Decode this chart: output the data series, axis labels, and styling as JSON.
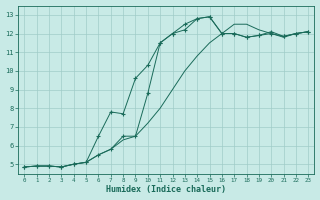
{
  "xlabel": "Humidex (Indice chaleur)",
  "bg_color": "#c8eae6",
  "grid_color": "#a0ccc8",
  "line_color": "#1a6b5a",
  "xlim": [
    -0.5,
    23.5
  ],
  "ylim": [
    4.5,
    13.5
  ],
  "xticks": [
    0,
    1,
    2,
    3,
    4,
    5,
    6,
    7,
    8,
    9,
    10,
    11,
    12,
    13,
    14,
    15,
    16,
    17,
    18,
    19,
    20,
    21,
    22,
    23
  ],
  "yticks": [
    5,
    6,
    7,
    8,
    9,
    10,
    11,
    12,
    13
  ],
  "line1_x": [
    0,
    1,
    2,
    3,
    4,
    5,
    6,
    7,
    8,
    9,
    10,
    11,
    12,
    13,
    14,
    15,
    16,
    17,
    18,
    19,
    20,
    21,
    22,
    23
  ],
  "line1_y": [
    4.85,
    4.9,
    4.9,
    4.85,
    5.0,
    5.1,
    5.5,
    5.8,
    6.3,
    6.5,
    7.2,
    8.0,
    9.0,
    10.0,
    10.8,
    11.5,
    12.0,
    12.5,
    12.5,
    12.2,
    12.0,
    11.8,
    12.0,
    12.1
  ],
  "line2_x": [
    0,
    1,
    2,
    3,
    4,
    5,
    6,
    7,
    8,
    9,
    10,
    11,
    12,
    13,
    14,
    15,
    16,
    17,
    18,
    19,
    20,
    21,
    22,
    23
  ],
  "line2_y": [
    4.85,
    4.9,
    4.9,
    4.85,
    5.0,
    5.1,
    6.5,
    7.8,
    7.7,
    9.6,
    10.3,
    11.5,
    12.0,
    12.2,
    12.8,
    12.9,
    12.0,
    12.0,
    11.8,
    11.9,
    12.1,
    11.85,
    12.0,
    12.1
  ],
  "line3_x": [
    0,
    1,
    2,
    3,
    4,
    5,
    6,
    7,
    8,
    9,
    10,
    11,
    12,
    13,
    14,
    15,
    16,
    17,
    18,
    19,
    20,
    21,
    22,
    23
  ],
  "line3_y": [
    4.85,
    4.9,
    4.9,
    4.85,
    5.0,
    5.1,
    5.5,
    5.8,
    6.5,
    6.5,
    8.8,
    11.5,
    12.0,
    12.5,
    12.8,
    12.9,
    12.0,
    12.0,
    11.8,
    11.9,
    12.0,
    11.85,
    12.0,
    12.1
  ]
}
